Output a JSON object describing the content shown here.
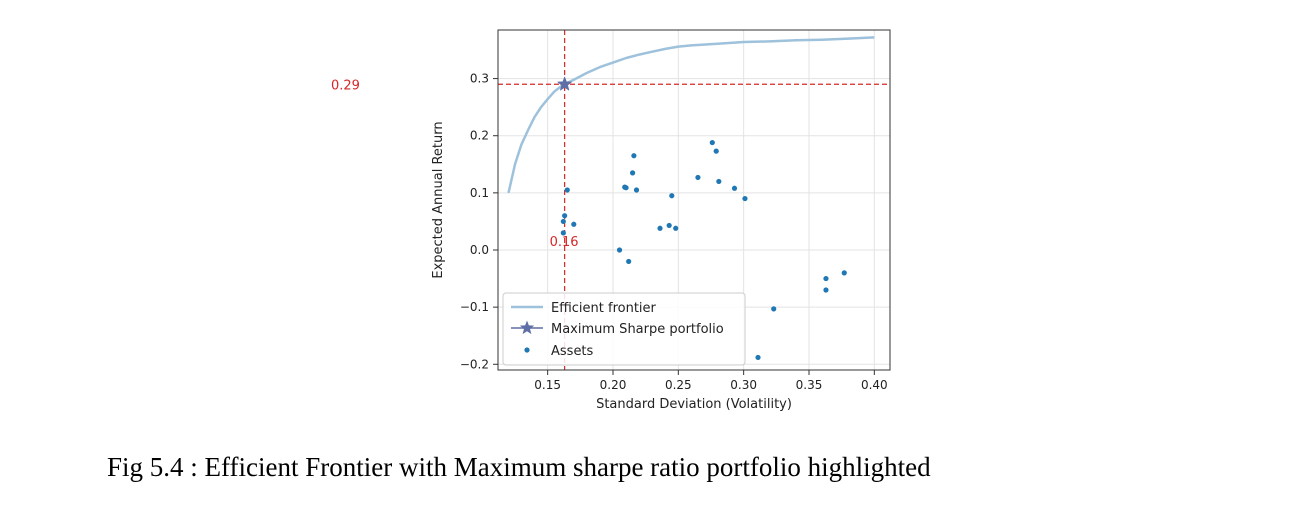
{
  "caption": "Fig 5.4 : Efficient Frontier with Maximum sharpe ratio portfolio highlighted",
  "chart_data": {
    "type": "scatter",
    "xlabel": "Standard Deviation (Volatility)",
    "ylabel": "Expected Annual Return",
    "xlim": [
      0.112,
      0.412
    ],
    "ylim": [
      -0.21,
      0.385
    ],
    "xticks": [
      0.15,
      0.2,
      0.25,
      0.3,
      0.35,
      0.4
    ],
    "xtick_labels": [
      "0.15",
      "0.20",
      "0.25",
      "0.30",
      "0.35",
      "0.40"
    ],
    "yticks": [
      -0.2,
      -0.1,
      0.0,
      0.1,
      0.2,
      0.3
    ],
    "ytick_labels": [
      "−0.2",
      "−0.1",
      "0.0",
      "0.1",
      "0.2",
      "0.3"
    ],
    "grid": true,
    "legend_position": "lower-left",
    "colors": {
      "frontier": "#9ec1dc",
      "assets": "#1f77b4",
      "star": "#5f6fa6",
      "guide": "#d62728",
      "annotation": "#d62728"
    },
    "series": [
      {
        "name": "Efficient frontier",
        "kind": "line",
        "x": [
          0.12,
          0.125,
          0.13,
          0.135,
          0.14,
          0.145,
          0.15,
          0.155,
          0.16,
          0.163,
          0.17,
          0.18,
          0.19,
          0.2,
          0.21,
          0.22,
          0.23,
          0.24,
          0.25,
          0.26,
          0.28,
          0.3,
          0.32,
          0.34,
          0.36,
          0.38,
          0.4
        ],
        "y": [
          0.1,
          0.15,
          0.185,
          0.21,
          0.233,
          0.25,
          0.264,
          0.277,
          0.286,
          0.29,
          0.298,
          0.31,
          0.32,
          0.328,
          0.336,
          0.342,
          0.347,
          0.352,
          0.356,
          0.358,
          0.361,
          0.364,
          0.365,
          0.367,
          0.368,
          0.37,
          0.372
        ]
      },
      {
        "name": "Maximum Sharpe portfolio",
        "kind": "star",
        "x": [
          0.163
        ],
        "y": [
          0.29
        ]
      },
      {
        "name": "Assets",
        "kind": "scatter",
        "x": [
          0.162,
          0.163,
          0.165,
          0.17,
          0.162,
          0.205,
          0.209,
          0.212,
          0.215,
          0.216,
          0.218,
          0.21,
          0.236,
          0.243,
          0.245,
          0.248,
          0.265,
          0.276,
          0.279,
          0.281,
          0.293,
          0.301,
          0.311,
          0.323,
          0.363,
          0.363,
          0.377
        ],
        "y": [
          0.03,
          0.06,
          0.105,
          0.045,
          0.05,
          0.0,
          0.11,
          -0.02,
          0.135,
          0.165,
          0.105,
          0.109,
          0.038,
          0.043,
          0.095,
          0.038,
          0.127,
          0.188,
          0.173,
          0.12,
          0.108,
          0.09,
          -0.188,
          -0.103,
          -0.05,
          -0.07,
          -0.04
        ]
      }
    ],
    "guides": {
      "vertical_x": 0.163,
      "horizontal_y": 0.29
    },
    "annotations": [
      {
        "text": "0.29",
        "anchor": "left-of-axes-at-y"
      },
      {
        "text": "0.16",
        "anchor": "below-star-at-x"
      }
    ]
  }
}
